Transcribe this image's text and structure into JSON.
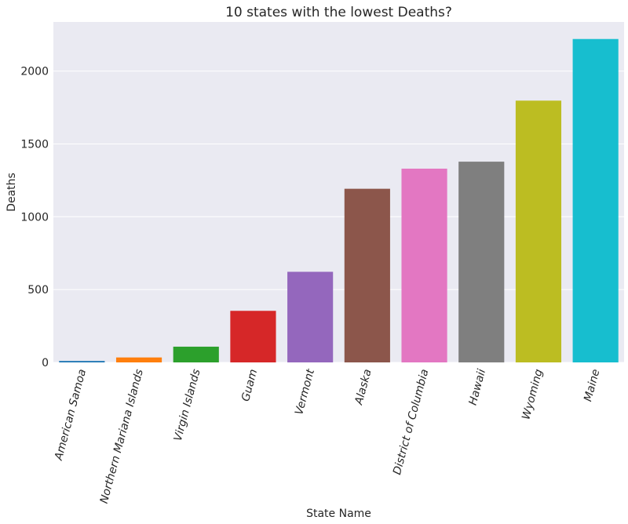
{
  "chart_data": {
    "type": "bar",
    "title": "10 states with the lowest Deaths?",
    "xlabel": "State Name",
    "ylabel": "Deaths",
    "categories": [
      "American Samoa",
      "Northern Mariana Islands",
      "Virgin Islands",
      "Guam",
      "Vermont",
      "Alaska",
      "District of Columbia",
      "Hawaii",
      "Wyoming",
      "Maine"
    ],
    "values": [
      10,
      34,
      108,
      354,
      622,
      1192,
      1330,
      1378,
      1797,
      2220
    ],
    "colors": [
      "#1f77b4",
      "#ff7f0e",
      "#2ca02c",
      "#d62728",
      "#9467bd",
      "#8c564b",
      "#e377c2",
      "#7f7f7f",
      "#bcbd22",
      "#17becf"
    ],
    "ylim": [
      0,
      2337
    ],
    "yticks": [
      0,
      500,
      1000,
      1500,
      2000
    ],
    "grid": true,
    "background": "#eaeaf2"
  }
}
